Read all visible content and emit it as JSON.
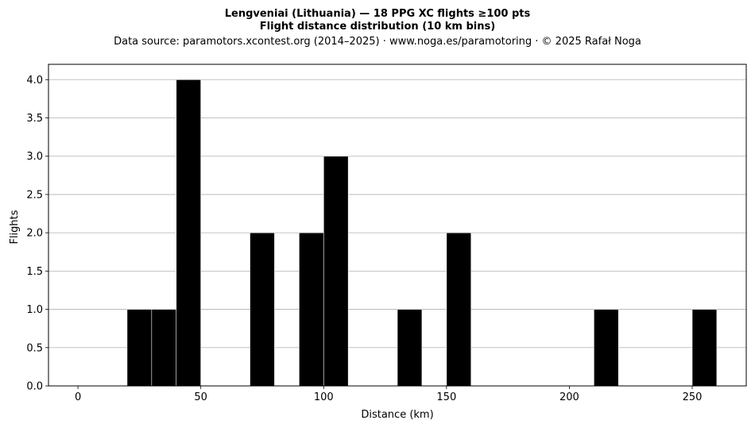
{
  "chart_data": {
    "type": "bar",
    "title_lines": [
      "Lengveniai (Lithuania)  —  18 PPG XC flights ≥100 pts",
      "Flight distance distribution (10 km bins)"
    ],
    "subtitle": "Data source: paramotors.xcontest.org (2014–2025)  ·  www.noga.es/paramotoring  ·  © 2025 Rafał Noga",
    "xlabel": "Distance (km)",
    "ylabel": "Flights",
    "xlim": [
      -12,
      272
    ],
    "ylim": [
      0,
      4.2
    ],
    "x_ticks": [
      0,
      50,
      100,
      150,
      200,
      250
    ],
    "x_tick_labels": [
      "0",
      "50",
      "100",
      "150",
      "200",
      "250"
    ],
    "y_ticks": [
      0,
      0.5,
      1,
      1.5,
      2,
      2.5,
      3,
      3.5,
      4
    ],
    "y_tick_labels": [
      "0.0",
      "0.5",
      "1.0",
      "1.5",
      "2.0",
      "2.5",
      "3.0",
      "3.5",
      "4.0"
    ],
    "grid": "y",
    "bar_color": "#000000",
    "bar_edge_color": "#ffffff",
    "grid_color": "#b0b0b0",
    "bins": [
      {
        "start": 20,
        "end": 30,
        "count": 1
      },
      {
        "start": 30,
        "end": 40,
        "count": 1
      },
      {
        "start": 40,
        "end": 50,
        "count": 4
      },
      {
        "start": 70,
        "end": 80,
        "count": 2
      },
      {
        "start": 90,
        "end": 100,
        "count": 2
      },
      {
        "start": 100,
        "end": 110,
        "count": 3
      },
      {
        "start": 130,
        "end": 140,
        "count": 1
      },
      {
        "start": 150,
        "end": 160,
        "count": 2
      },
      {
        "start": 210,
        "end": 220,
        "count": 1
      },
      {
        "start": 250,
        "end": 260,
        "count": 1
      }
    ]
  }
}
